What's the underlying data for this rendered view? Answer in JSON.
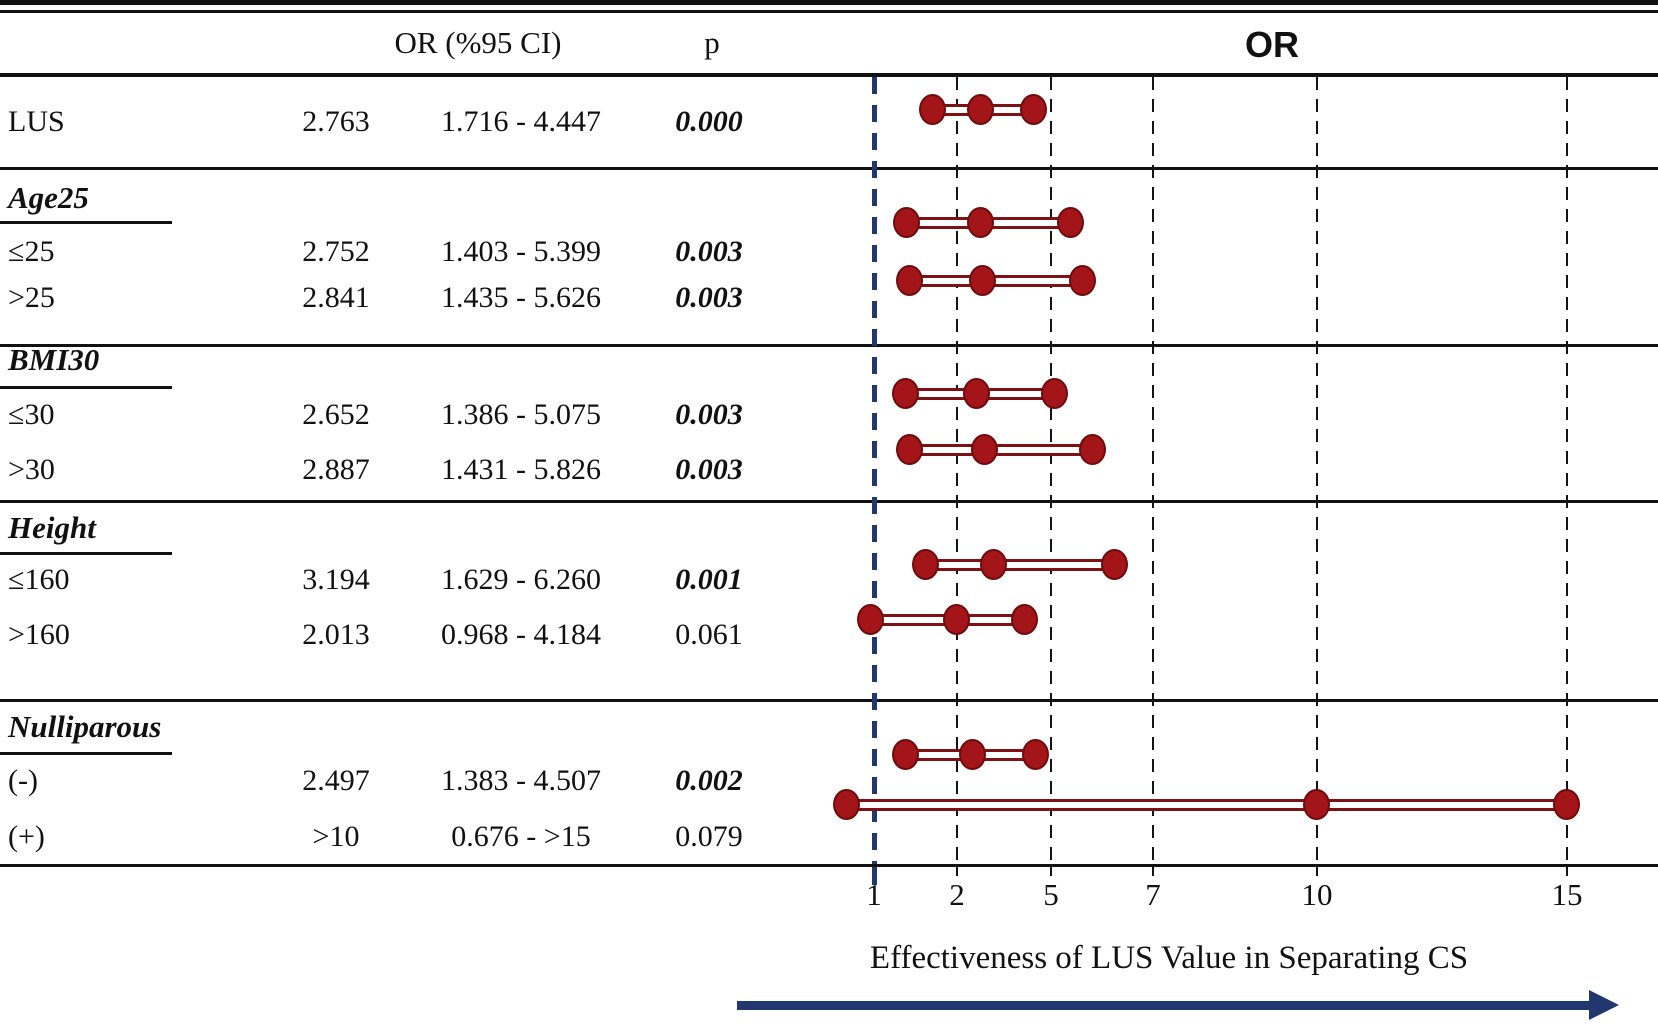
{
  "figure_title": "OR",
  "colors": {
    "marker_fill": "#a31518",
    "marker_edge": "#700b0d",
    "connector_line": "#7e1113",
    "navy_blue": "#21376e",
    "line_black": "#141414"
  },
  "chart_data": {
    "type": "forest",
    "plot_title": "OR",
    "xlabel": "Effectiveness of LUS Value in Separating CS",
    "x_ticks": [
      "1",
      "2",
      "5",
      "7",
      "10",
      "15"
    ],
    "reference_value": 1,
    "legend": "none",
    "grid": "vertical-dashed",
    "columns": {
      "ci_header": "OR (%95 CI)",
      "p_header": "p"
    },
    "rows": [
      {
        "kind": "data",
        "label": "LUS",
        "or": "2.763",
        "ci": "1.716 - 4.447",
        "p": "0.000",
        "sig": true,
        "lo": 1.716,
        "mid": 2.763,
        "hi": 4.447
      },
      {
        "kind": "section",
        "label": "Age25"
      },
      {
        "kind": "data",
        "label": "≤25",
        "or": "2.752",
        "ci": "1.403 - 5.399",
        "p": "0.003",
        "sig": true,
        "lo": 1.403,
        "mid": 2.752,
        "hi": 5.399
      },
      {
        "kind": "data",
        "label": ">25",
        "or": "2.841",
        "ci": "1.435 - 5.626",
        "p": "0.003",
        "sig": true,
        "lo": 1.435,
        "mid": 2.841,
        "hi": 5.626
      },
      {
        "kind": "section",
        "label": "BMI30"
      },
      {
        "kind": "data",
        "label": "≤30",
        "or": "2.652",
        "ci": "1.386 - 5.075",
        "p": "0.003",
        "sig": true,
        "lo": 1.386,
        "mid": 2.652,
        "hi": 5.075
      },
      {
        "kind": "data",
        "label": ">30",
        "or": "2.887",
        "ci": "1.431 - 5.826",
        "p": "0.003",
        "sig": true,
        "lo": 1.431,
        "mid": 2.887,
        "hi": 5.826
      },
      {
        "kind": "section",
        "label": "Height"
      },
      {
        "kind": "data",
        "label": "≤160",
        "or": "3.194",
        "ci": "1.629 - 6.260",
        "p": "0.001",
        "sig": true,
        "lo": 1.629,
        "mid": 3.194,
        "hi": 6.26
      },
      {
        "kind": "data",
        "label": ">160",
        "or": "2.013",
        "ci": "0.968 - 4.184",
        "p": "0.061",
        "sig": false,
        "lo": 0.968,
        "mid": 2.013,
        "hi": 4.184
      },
      {
        "kind": "section",
        "label": "Nulliparous"
      },
      {
        "kind": "data",
        "label": "(-)",
        "or": "2.497",
        "ci": "1.383 - 4.507",
        "p": "0.002",
        "sig": true,
        "lo": 1.383,
        "mid": 2.497,
        "hi": 4.507
      },
      {
        "kind": "data",
        "label": "(+)",
        "or": ">10",
        "ci": "0.676 - >15",
        "p": "0.079",
        "sig": false,
        "lo": 0.676,
        "mid": 10,
        "hi": 15
      }
    ]
  }
}
